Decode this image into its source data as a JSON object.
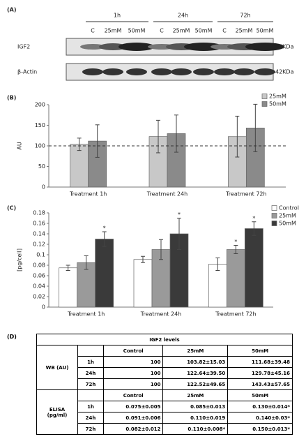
{
  "panel_a": {
    "label": "(A)",
    "timepoints": [
      {
        "label": "1h",
        "lanes": [
          "C",
          "25mM",
          "50mM"
        ]
      },
      {
        "label": "24h",
        "lanes": [
          "C",
          "25mM",
          "50mM"
        ]
      },
      {
        "label": "72h",
        "lanes": [
          "C",
          "25mM",
          "50mM"
        ]
      }
    ],
    "blots": [
      {
        "name": "IGF2",
        "size": "23KDa"
      },
      {
        "name": "β-Actin",
        "size": "42KDa"
      }
    ]
  },
  "chart_data": [
    {
      "type": "bar",
      "label": "(B)",
      "y_label": "AU",
      "categories": [
        "Treatment 1h",
        "Treatment 24h",
        "Treatment 72h"
      ],
      "series": [
        {
          "name": "25mM",
          "color": "#c8c8c8",
          "values": [
            103.82,
            122.64,
            122.52
          ],
          "errors": [
            15.03,
            39.5,
            49.65
          ]
        },
        {
          "name": "50mM",
          "color": "#8a8a8a",
          "values": [
            111.68,
            129.78,
            143.43
          ],
          "errors": [
            39.48,
            45.16,
            57.65
          ]
        }
      ],
      "ylim": [
        0,
        200
      ],
      "yticks": [
        0,
        50,
        100,
        150,
        200
      ],
      "reference_line": 100
    },
    {
      "type": "bar",
      "label": "(C)",
      "y_label": "[pg/cell]",
      "categories": [
        "Treatment 1h",
        "Treatment 24h",
        "Treatment 72h"
      ],
      "series": [
        {
          "name": "Control",
          "color": "#ffffff",
          "values": [
            0.075,
            0.091,
            0.082
          ],
          "errors": [
            0.005,
            0.006,
            0.012
          ],
          "markers": [
            null,
            null,
            null
          ]
        },
        {
          "name": "25mM",
          "color": "#9a9a9a",
          "values": [
            0.085,
            0.11,
            0.11
          ],
          "errors": [
            0.013,
            0.019,
            0.008
          ],
          "markers": [
            null,
            null,
            "*"
          ]
        },
        {
          "name": "50mM",
          "color": "#3a3a3a",
          "values": [
            0.13,
            0.14,
            0.15
          ],
          "errors": [
            0.014,
            0.03,
            0.013
          ],
          "markers": [
            "*",
            "*",
            "*"
          ]
        }
      ],
      "ylim": [
        0,
        0.18
      ],
      "yticks": [
        0,
        0.02,
        0.04,
        0.06,
        0.08,
        0.1,
        0.12,
        0.14,
        0.16,
        0.18
      ]
    }
  ],
  "table": {
    "label": "(D)",
    "title": "IGF2 levels",
    "groups": [
      {
        "name": "WB (AU)",
        "columns": [
          "Control",
          "25mM",
          "50mM"
        ],
        "rows": [
          [
            "1h",
            "100",
            "103.82±15.03",
            "111.68±39.48"
          ],
          [
            "24h",
            "100",
            "122.64±39.50",
            "129.78±45.16"
          ],
          [
            "72h",
            "100",
            "122.52±49.65",
            "143.43±57.65"
          ]
        ]
      },
      {
        "name": "ELISA (pg/ml)",
        "columns": [
          "Control",
          "25mM",
          "50mM"
        ],
        "rows": [
          [
            "1h",
            "0.075±0.005",
            "0.085±0.013",
            "0.130±0.014*"
          ],
          [
            "24h",
            "0.091±0.006",
            "0.110±0.019",
            "0.140±0.03*"
          ],
          [
            "72h",
            "0.082±0.012",
            "0.110±0.008*",
            "0.150±0.013*"
          ]
        ]
      }
    ]
  }
}
